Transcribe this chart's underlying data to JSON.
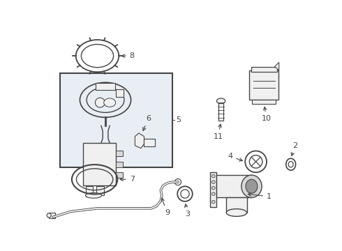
{
  "bg_color": "#ffffff",
  "line_color": "#444444",
  "fill_light": "#f0f0f0",
  "fill_mid": "#d8d8d8",
  "box_fill": "#e8eef4",
  "label_color": "#111111",
  "figsize": [
    4.9,
    3.6
  ],
  "dpi": 100
}
